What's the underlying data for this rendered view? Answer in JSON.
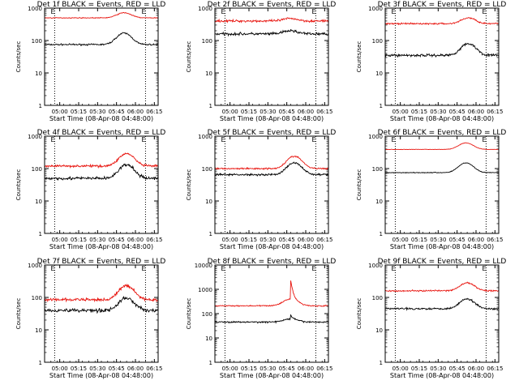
{
  "colors": {
    "events": "#000000",
    "lld": "#e8150f"
  },
  "chart_data": [
    {
      "type": "line",
      "title": "Det 1f BLACK = Events, RED = LLD",
      "ylabel": "Counts/sec",
      "xlabel": "Start Time (08-Apr-08 04:48:00)",
      "yscale": "log",
      "ylim": [
        1,
        1000
      ],
      "yticks": [
        "1",
        "10",
        "100",
        "1000"
      ],
      "xticks": [
        "05:00",
        "05:15",
        "05:30",
        "05:45",
        "06:00",
        "06:15"
      ],
      "markers": [
        "E",
        "E"
      ],
      "series": [
        {
          "color": "#000000",
          "base": 75,
          "peak": 170,
          "peak_x": "05:51",
          "noise": 0.04
        },
        {
          "color": "#e8150f",
          "base": 500,
          "peak": 720,
          "peak_x": "05:51",
          "noise": 0.02
        }
      ]
    },
    {
      "type": "line",
      "title": "Det 2f BLACK = Events, RED = LLD",
      "ylabel": "Counts/sec",
      "xlabel": "Start Time (08-Apr-08 04:48:00)",
      "yscale": "log",
      "ylim": [
        1,
        1000
      ],
      "yticks": [
        "1",
        "10",
        "100",
        "1000"
      ],
      "xticks": [
        "05:00",
        "05:15",
        "05:30",
        "05:45",
        "06:00",
        "06:15"
      ],
      "markers": [
        "E",
        "E"
      ],
      "series": [
        {
          "color": "#000000",
          "base": 160,
          "peak": 200,
          "peak_x": "05:48",
          "noise": 0.07
        },
        {
          "color": "#e8150f",
          "base": 400,
          "peak": 480,
          "peak_x": "05:48",
          "noise": 0.06
        }
      ]
    },
    {
      "type": "line",
      "title": "Det 3f BLACK = Events, RED = LLD",
      "ylabel": "Counts/sec",
      "xlabel": "Start Time (08-Apr-08 04:48:00)",
      "yscale": "log",
      "ylim": [
        1,
        1000
      ],
      "yticks": [
        "1",
        "10",
        "100",
        "1000"
      ],
      "xticks": [
        "05:00",
        "05:15",
        "05:30",
        "05:45",
        "06:00",
        "06:15"
      ],
      "markers": [
        "E",
        "E"
      ],
      "series": [
        {
          "color": "#000000",
          "base": 35,
          "peak": 80,
          "peak_x": "05:54",
          "noise": 0.07
        },
        {
          "color": "#e8150f",
          "base": 330,
          "peak": 500,
          "peak_x": "05:54",
          "noise": 0.04
        }
      ]
    },
    {
      "type": "line",
      "title": "Det 4f BLACK = Events, RED = LLD",
      "ylabel": "Counts/sec",
      "xlabel": "Start Time (08-Apr-08 04:48:00)",
      "yscale": "log",
      "ylim": [
        1,
        1000
      ],
      "yticks": [
        "1",
        "10",
        "100",
        "1000"
      ],
      "xticks": [
        "05:00",
        "05:15",
        "05:30",
        "05:45",
        "06:00",
        "06:15"
      ],
      "markers": [
        "E",
        "E"
      ],
      "series": [
        {
          "color": "#000000",
          "base": 50,
          "peak": 130,
          "peak_x": "05:53",
          "noise": 0.08
        },
        {
          "color": "#e8150f",
          "base": 120,
          "peak": 290,
          "peak_x": "05:53",
          "noise": 0.06
        }
      ]
    },
    {
      "type": "line",
      "title": "Det 5f BLACK = Events, RED = LLD",
      "ylabel": "Counts/sec",
      "xlabel": "Start Time (08-Apr-08 04:48:00)",
      "yscale": "log",
      "ylim": [
        1,
        1000
      ],
      "yticks": [
        "1",
        "10",
        "100",
        "1000"
      ],
      "xticks": [
        "05:00",
        "05:15",
        "05:30",
        "05:45",
        "06:00",
        "06:15"
      ],
      "markers": [
        "E",
        "E"
      ],
      "series": [
        {
          "color": "#000000",
          "base": 65,
          "peak": 150,
          "peak_x": "05:51",
          "noise": 0.05
        },
        {
          "color": "#e8150f",
          "base": 100,
          "peak": 240,
          "peak_x": "05:51",
          "noise": 0.04
        }
      ]
    },
    {
      "type": "line",
      "title": "Det 6f BLACK = Events, RED = LLD",
      "ylabel": "Counts/sec",
      "xlabel": "Start Time (08-Apr-08 04:48:00)",
      "yscale": "log",
      "ylim": [
        1,
        1000
      ],
      "yticks": [
        "1",
        "10",
        "100",
        "1000"
      ],
      "xticks": [
        "05:00",
        "05:15",
        "05:30",
        "05:45",
        "06:00",
        "06:15"
      ],
      "markers": [
        "E",
        "E"
      ],
      "series": [
        {
          "color": "#000000",
          "base": 75,
          "peak": 150,
          "peak_x": "05:52",
          "noise": 0.02
        },
        {
          "color": "#e8150f",
          "base": 390,
          "peak": 620,
          "peak_x": "05:52",
          "noise": 0.01
        }
      ]
    },
    {
      "type": "line",
      "title": "Det 7f BLACK = Events, RED = LLD",
      "ylabel": "Counts/sec",
      "xlabel": "Start Time (08-Apr-08 04:48:00)",
      "yscale": "log",
      "ylim": [
        1,
        1000
      ],
      "yticks": [
        "1",
        "10",
        "100",
        "1000"
      ],
      "xticks": [
        "05:00",
        "05:15",
        "05:30",
        "05:45",
        "06:00",
        "06:15"
      ],
      "markers": [
        "E",
        "E"
      ],
      "series": [
        {
          "color": "#000000",
          "base": 40,
          "peak": 95,
          "peak_x": "05:53",
          "noise": 0.1
        },
        {
          "color": "#e8150f",
          "base": 85,
          "peak": 230,
          "peak_x": "05:53",
          "noise": 0.08
        }
      ]
    },
    {
      "type": "line",
      "title": "Det 8f BLACK = Events, RED = LLD",
      "ylabel": "Counts/sec",
      "xlabel": "Start Time (08-Apr-08 04:48:00)",
      "yscale": "log",
      "ylim": [
        1,
        10000
      ],
      "yticks": [
        "1",
        "10",
        "100",
        "1000",
        "10000"
      ],
      "xticks": [
        "05:00",
        "05:15",
        "05:30",
        "05:45",
        "06:00",
        "06:15"
      ],
      "markers": [
        "E",
        "E"
      ],
      "series": [
        {
          "color": "#000000",
          "base": 45,
          "peak": 60,
          "peak_x": "05:48",
          "noise": 0.05,
          "spike_x": "05:48",
          "spike_y": 80
        },
        {
          "color": "#e8150f",
          "base": 210,
          "peak": 400,
          "peak_x": "05:48",
          "noise": 0.04,
          "spike_x": "05:48",
          "spike_y": 2300
        }
      ]
    },
    {
      "type": "line",
      "title": "Det 9f BLACK = Events, RED = LLD",
      "ylabel": "Counts/sec",
      "xlabel": "Start Time (08-Apr-08 04:48:00)",
      "yscale": "log",
      "ylim": [
        1,
        1000
      ],
      "yticks": [
        "1",
        "10",
        "100",
        "1000"
      ],
      "xticks": [
        "05:00",
        "05:15",
        "05:30",
        "05:45",
        "06:00",
        "06:15"
      ],
      "markers": [
        "E",
        "E"
      ],
      "series": [
        {
          "color": "#000000",
          "base": 45,
          "peak": 90,
          "peak_x": "05:53",
          "noise": 0.05
        },
        {
          "color": "#e8150f",
          "base": 160,
          "peak": 280,
          "peak_x": "05:53",
          "noise": 0.04
        }
      ]
    }
  ]
}
